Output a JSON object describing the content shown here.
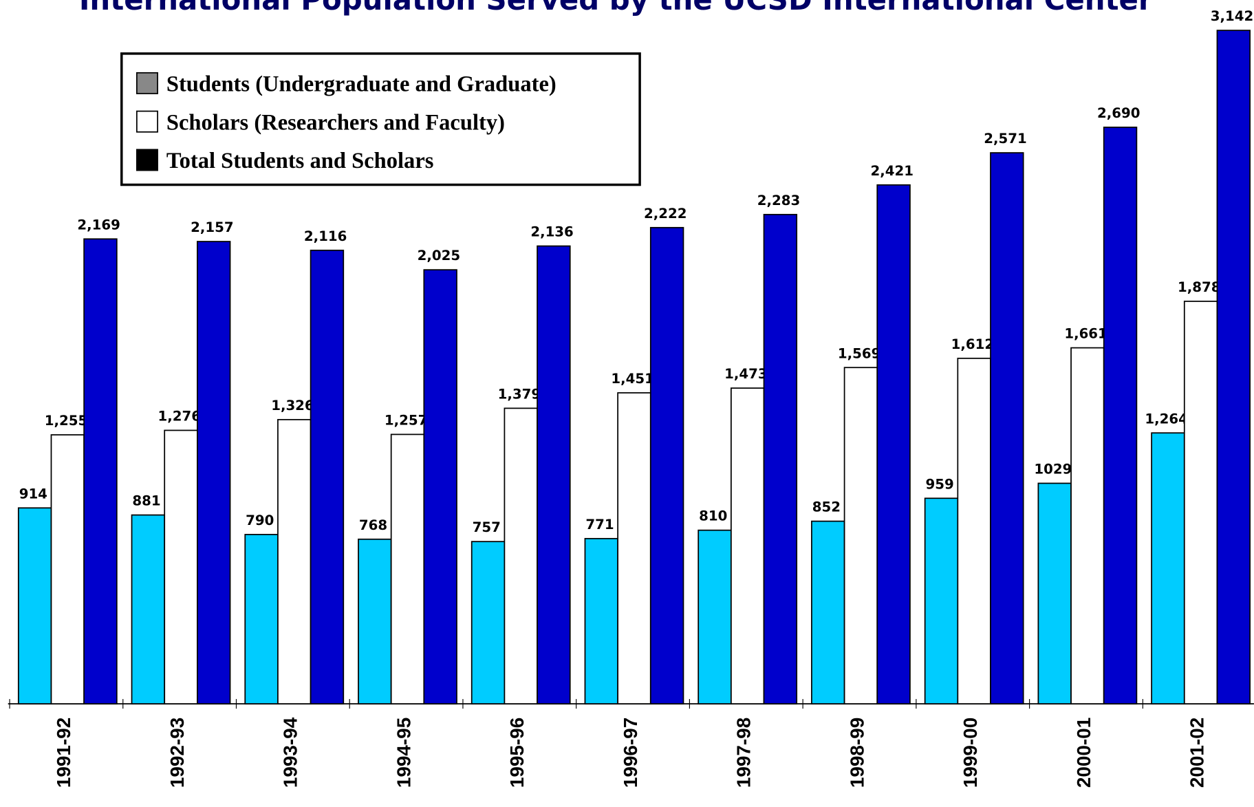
{
  "chart_data": {
    "type": "bar",
    "title": "International Population Served by the UCSD International Center",
    "categories": [
      "1991-92",
      "1992-93",
      "1993-94",
      "1994-95",
      "1995-96",
      "1996-97",
      "1997-98",
      "1998-99",
      "1999-00",
      "2000-01",
      "2001-02"
    ],
    "series": [
      {
        "name": "Students (Undergraduate and Graduate)",
        "color": "#00ccff",
        "legend_color": "#888888",
        "values": [
          914,
          881,
          790,
          768,
          757,
          771,
          810,
          852,
          959,
          1029,
          1264
        ],
        "value_labels": [
          "914",
          "881",
          "790",
          "768",
          "757",
          "771",
          "810",
          "852",
          "959",
          "1029",
          "1,264"
        ]
      },
      {
        "name": "Scholars (Researchers and Faculty)",
        "color": "#ffffff",
        "legend_color": "#ffffff",
        "values": [
          1255,
          1276,
          1326,
          1257,
          1379,
          1451,
          1473,
          1569,
          1612,
          1661,
          1878
        ],
        "value_labels": [
          "1,255",
          "1,276",
          "1,326",
          "1,257",
          "1,379",
          "1,451",
          "1,473",
          "1,569",
          "1,612",
          "1,661",
          "1,878"
        ]
      },
      {
        "name": "Total Students and Scholars",
        "color": "#0000cc",
        "legend_color": "#000000",
        "values": [
          2169,
          2157,
          2116,
          2025,
          2136,
          2222,
          2283,
          2421,
          2571,
          2690,
          3142
        ],
        "value_labels": [
          "2,169",
          "2,157",
          "2,116",
          "2,025",
          "2,136",
          "2,222",
          "2,283",
          "2,421",
          "2,571",
          "2,690",
          "3,142"
        ]
      }
    ]
  }
}
